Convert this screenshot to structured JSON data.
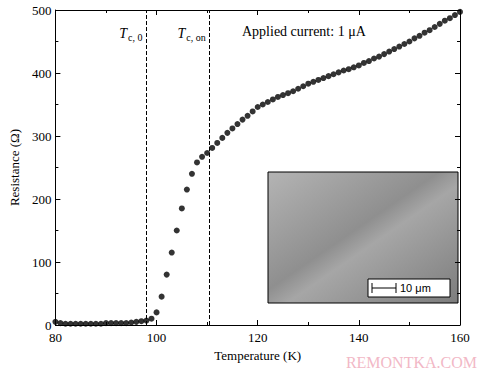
{
  "chart_data": {
    "type": "scatter",
    "x_label": "Temperature (K)",
    "y_label": "Resistance (Ω)",
    "x": [
      80,
      81,
      82,
      83,
      84,
      85,
      86,
      87,
      88,
      89,
      90,
      91,
      92,
      93,
      94,
      95,
      96,
      97,
      98,
      99,
      100,
      101,
      102,
      103,
      104,
      105,
      106,
      107,
      108,
      109,
      110,
      111,
      112,
      113,
      114,
      115,
      116,
      117,
      118,
      119,
      120,
      121,
      122,
      123,
      124,
      125,
      126,
      127,
      128,
      129,
      130,
      131,
      132,
      133,
      134,
      135,
      136,
      137,
      138,
      139,
      140,
      141,
      142,
      143,
      144,
      145,
      146,
      147,
      148,
      149,
      150,
      151,
      152,
      153,
      154,
      155,
      156,
      157,
      158,
      159,
      160
    ],
    "values": [
      5,
      3,
      2,
      2,
      2,
      2,
      2,
      2,
      2,
      2,
      3,
      3,
      3,
      3,
      3,
      4,
      5,
      6,
      7,
      10,
      20,
      45,
      80,
      115,
      150,
      185,
      215,
      240,
      258,
      267,
      273,
      281,
      289,
      297,
      305,
      312,
      319,
      326,
      332,
      339,
      346,
      350,
      354,
      358,
      362,
      365,
      368,
      371,
      375,
      379,
      383,
      386,
      389,
      392,
      395,
      398,
      401,
      404,
      406,
      409,
      412,
      416,
      419,
      423,
      426,
      430,
      434,
      438,
      442,
      446,
      450,
      455,
      459,
      464,
      468,
      473,
      478,
      483,
      487,
      492,
      497
    ],
    "color": "#000000",
    "marker": "circle",
    "xlim": [
      80,
      160
    ],
    "xticks": [
      80,
      100,
      120,
      140,
      160
    ],
    "ylim": [
      0,
      500
    ],
    "yticks": [
      0,
      100,
      200,
      300,
      400,
      500
    ],
    "grid": false,
    "vlines": [
      {
        "x": 98,
        "label": "T",
        "subscript": "c, 0",
        "line_style": "dashed"
      },
      {
        "x": 110.5,
        "label": "T",
        "subscript": "c, on",
        "line_style": "dashed"
      }
    ],
    "annotations": [
      {
        "text": "Applied current: 1 μA"
      },
      {
        "text": "REMONTKA.COM"
      }
    ],
    "inset": {
      "scale_bar": "10 μm"
    }
  }
}
